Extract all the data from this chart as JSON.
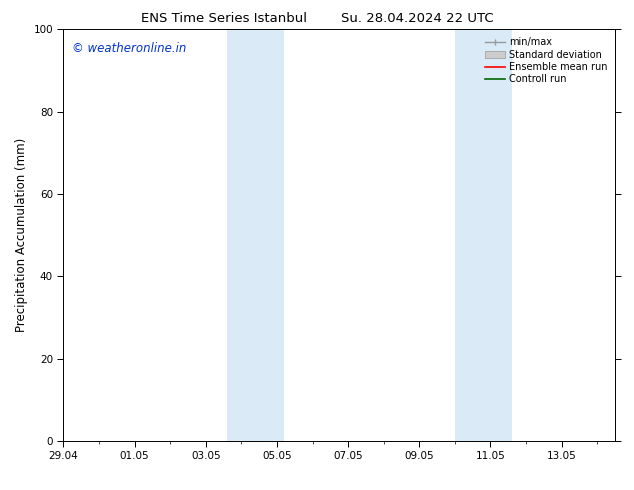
{
  "title_left": "ENS Time Series Istanbul",
  "title_right": "Su. 28.04.2024 22 UTC",
  "ylabel": "Precipitation Accumulation (mm)",
  "watermark": "© weatheronline.in",
  "watermark_color": "#0033cc",
  "ylim": [
    0,
    100
  ],
  "yticks": [
    0,
    20,
    40,
    60,
    80,
    100
  ],
  "xtick_labels": [
    "29.04",
    "01.05",
    "03.05",
    "05.05",
    "07.05",
    "09.05",
    "11.05",
    "13.05"
  ],
  "xtick_positions": [
    0,
    2,
    4,
    6,
    8,
    10,
    12,
    14
  ],
  "x_min": 0,
  "x_max": 15.5,
  "background_color": "#ffffff",
  "shaded_bands": [
    {
      "x_start": 4.6,
      "x_end": 5.4,
      "color": "#daeaf7"
    },
    {
      "x_start": 5.4,
      "x_end": 6.2,
      "color": "#daeaf7"
    },
    {
      "x_start": 11.0,
      "x_end": 11.8,
      "color": "#daeaf7"
    },
    {
      "x_start": 11.8,
      "x_end": 12.6,
      "color": "#daeaf7"
    }
  ],
  "legend_items": [
    {
      "label": "min/max",
      "color": "#aaaaaa",
      "type": "errorbar"
    },
    {
      "label": "Standard deviation",
      "color": "#cccccc",
      "type": "band"
    },
    {
      "label": "Ensemble mean run",
      "color": "#ff0000",
      "type": "line"
    },
    {
      "label": "Controll run",
      "color": "#006600",
      "type": "line"
    }
  ],
  "title_fontsize": 9.5,
  "tick_fontsize": 7.5,
  "ylabel_fontsize": 8.5,
  "legend_fontsize": 7.0
}
